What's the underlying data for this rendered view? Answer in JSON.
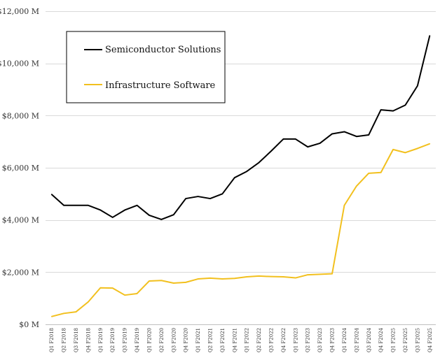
{
  "chart_data": {
    "type": "line",
    "title": "",
    "xlabel": "",
    "ylabel": "",
    "ylim": [
      0,
      12000
    ],
    "y_ticks": [
      0,
      2000,
      4000,
      6000,
      8000,
      10000,
      12000
    ],
    "y_tick_labels": [
      "$0 M",
      "$2,000 M",
      "$4,000 M",
      "$6,000 M",
      "$8,000 M",
      "$10,000 M",
      "$12,000 M"
    ],
    "grid": "horizontal",
    "legend_position": "top-left",
    "categories": [
      "Q1 F2018",
      "Q2 F2018",
      "Q3 F2018",
      "Q4 F2018",
      "Q1 F2019",
      "Q2 F2019",
      "Q3 F2019",
      "Q4 F2019",
      "Q1 F2020",
      "Q2 F2020",
      "Q3 F2020",
      "Q4 F2020",
      "Q1 F2021",
      "Q2 F2021",
      "Q3 F2021",
      "Q4 F2021",
      "Q1 F2022",
      "Q2 F2022",
      "Q3 F2022",
      "Q4 F2022",
      "Q1 F2023",
      "Q2 F2023",
      "Q3 F2023",
      "Q4 F2023",
      "Q1 F2024",
      "Q2 F2024",
      "Q3 F2024",
      "Q4 F2024",
      "Q1 F2025",
      "Q2 F2025",
      "Q3 F2025",
      "Q4 F2025"
    ],
    "series": [
      {
        "name": "Semiconductor Solutions",
        "color": "#000000",
        "values": [
          4980,
          4560,
          4560,
          4560,
          4380,
          4100,
          4380,
          4560,
          4180,
          4020,
          4200,
          4820,
          4900,
          4820,
          5000,
          5620,
          5860,
          6200,
          6640,
          7100,
          7100,
          6800,
          6940,
          7300,
          7380,
          7200,
          7260,
          8220,
          8180,
          8400,
          9140,
          11060
        ]
      },
      {
        "name": "Infrastructure Software",
        "color": "#f2c01e",
        "values": [
          300,
          420,
          480,
          860,
          1400,
          1390,
          1120,
          1180,
          1660,
          1680,
          1580,
          1610,
          1740,
          1770,
          1740,
          1760,
          1820,
          1850,
          1830,
          1820,
          1780,
          1900,
          1920,
          1940,
          4560,
          5300,
          5790,
          5820,
          6700,
          6580,
          6740,
          6920
        ]
      }
    ]
  }
}
